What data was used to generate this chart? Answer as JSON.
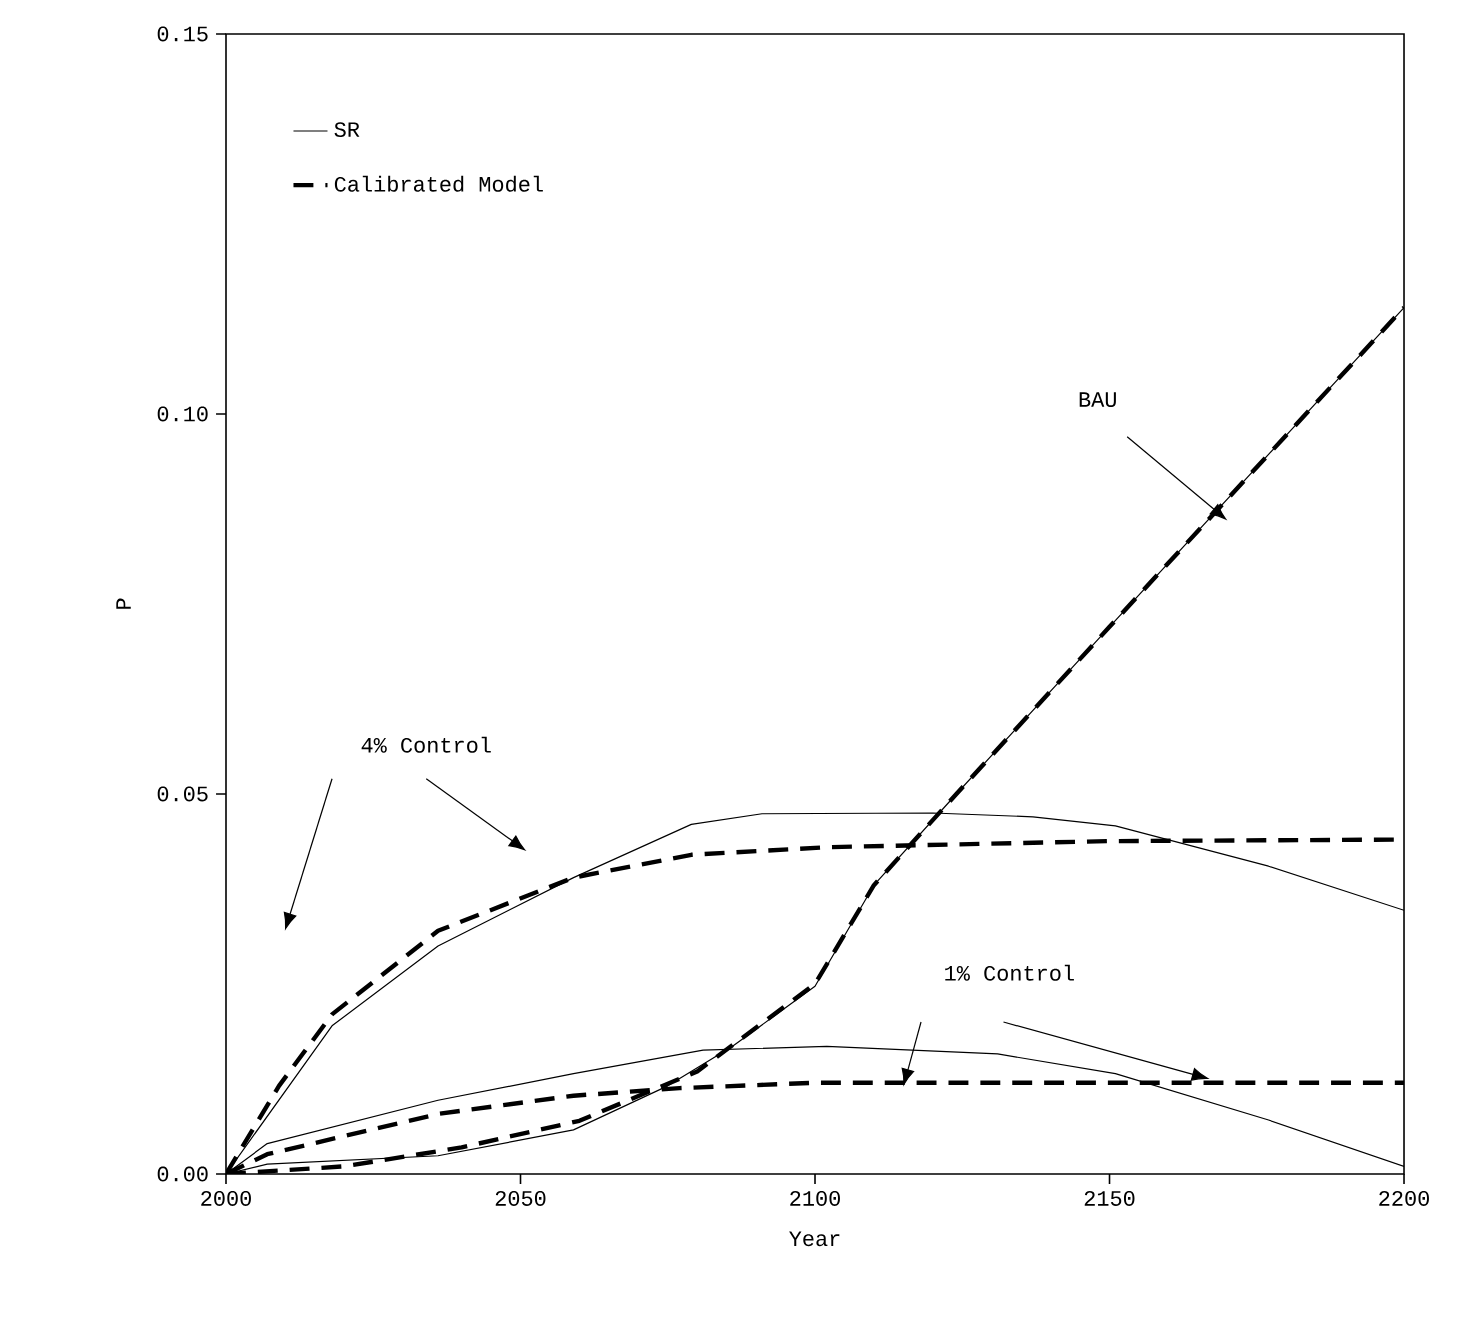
{
  "chart_data": {
    "type": "line",
    "xlabel": "Year",
    "ylabel": "P",
    "xlim": [
      2000,
      2200
    ],
    "ylim": [
      0,
      0.15
    ],
    "xticks": [
      2000,
      2050,
      2100,
      2150,
      2200
    ],
    "yticks": [
      {
        "value": 0,
        "label": "0.00"
      },
      {
        "value": 0.05,
        "label": "0.05"
      },
      {
        "value": 0.1,
        "label": "0.10"
      },
      {
        "value": 0.15,
        "label": "0.15"
      }
    ],
    "legend": "top left",
    "grid": false,
    "series": [
      {
        "name": "SR",
        "color": "#000000",
        "line_style": "solid",
        "x": [
          2000,
          2007,
          2036,
          2059,
          2075,
          2086,
          2100,
          2110,
          2124,
          2150,
          2175,
          2200
        ],
        "values": [
          0,
          0.0013,
          0.0024,
          0.0058,
          0.0116,
          0.0168,
          0.0247,
          0.038,
          0.05,
          0.072,
          0.093,
          0.114
        ]
      },
      {
        "name": "Calibrated Model",
        "color": "#000000",
        "line_style": "dashed",
        "x": [
          2000,
          2020,
          2040,
          2060,
          2080,
          2100,
          2110,
          2124,
          2150,
          2175,
          2200
        ],
        "values": [
          0,
          0.001,
          0.0035,
          0.007,
          0.0135,
          0.025,
          0.038,
          0.05,
          0.072,
          0.093,
          0.114
        ]
      },
      {
        "color": "#000000",
        "line_style": "solid",
        "x": [
          2000,
          2018,
          2036,
          2059,
          2079,
          2091,
          2120,
          2137,
          2151,
          2177,
          2200
        ],
        "values": [
          0,
          0.0195,
          0.03,
          0.039,
          0.046,
          0.0474,
          0.0475,
          0.047,
          0.0458,
          0.0405,
          0.0347
        ]
      },
      {
        "color": "#000000",
        "line_style": "dashed",
        "x": [
          2000,
          2009,
          2018,
          2036,
          2059,
          2079,
          2102,
          2150,
          2200
        ],
        "values": [
          0,
          0.0116,
          0.021,
          0.032,
          0.039,
          0.042,
          0.043,
          0.0438,
          0.044
        ]
      },
      {
        "color": "#000000",
        "line_style": "solid",
        "x": [
          2000,
          2007,
          2036,
          2059,
          2081,
          2102,
          2131,
          2151,
          2177,
          2200
        ],
        "values": [
          0,
          0.004,
          0.0097,
          0.0132,
          0.0163,
          0.0168,
          0.0158,
          0.0132,
          0.0071,
          0.001
        ]
      },
      {
        "color": "#000000",
        "line_style": "dashed",
        "x": [
          2000,
          2007,
          2036,
          2059,
          2077,
          2100,
          2200
        ],
        "values": [
          0,
          0.0026,
          0.0079,
          0.0103,
          0.0113,
          0.012,
          0.012
        ]
      }
    ],
    "annotations": [
      "BAU",
      "4% Control",
      "1% Control"
    ]
  }
}
